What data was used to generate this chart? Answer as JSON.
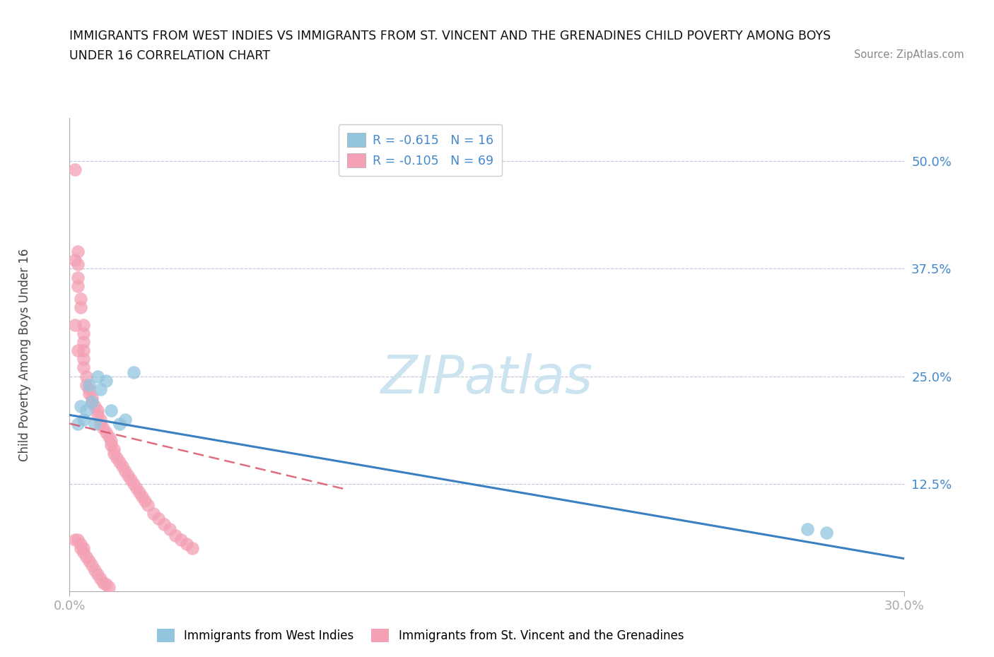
{
  "title_line1": "IMMIGRANTS FROM WEST INDIES VS IMMIGRANTS FROM ST. VINCENT AND THE GRENADINES CHILD POVERTY AMONG BOYS",
  "title_line2": "UNDER 16 CORRELATION CHART",
  "source": "Source: ZipAtlas.com",
  "ylabel": "Child Poverty Among Boys Under 16",
  "xlim": [
    0.0,
    0.3
  ],
  "ylim": [
    0.0,
    0.55
  ],
  "yticks": [
    0.0,
    0.125,
    0.25,
    0.375,
    0.5
  ],
  "ytick_labels": [
    "",
    "12.5%",
    "25.0%",
    "37.5%",
    "50.0%"
  ],
  "xtick_labels": [
    "0.0%",
    "30.0%"
  ],
  "legend_R1": "-0.615",
  "legend_N1": "16",
  "legend_R2": "-0.105",
  "legend_N2": "69",
  "blue_color": "#92c5de",
  "pink_color": "#f4a0b5",
  "blue_line_color": "#3a7fc1",
  "pink_line_color": "#d9536a",
  "watermark": "ZIPatlas",
  "watermark_color": "#cce4f0",
  "blue_x": [
    0.003,
    0.004,
    0.005,
    0.006,
    0.007,
    0.008,
    0.009,
    0.01,
    0.011,
    0.013,
    0.015,
    0.018,
    0.02,
    0.023,
    0.265,
    0.272
  ],
  "blue_y": [
    0.195,
    0.215,
    0.2,
    0.21,
    0.24,
    0.22,
    0.195,
    0.25,
    0.235,
    0.245,
    0.21,
    0.195,
    0.2,
    0.255,
    0.072,
    0.068
  ],
  "pink_x": [
    0.002,
    0.002,
    0.002,
    0.003,
    0.003,
    0.003,
    0.003,
    0.003,
    0.004,
    0.004,
    0.004,
    0.004,
    0.005,
    0.005,
    0.005,
    0.005,
    0.005,
    0.005,
    0.005,
    0.005,
    0.006,
    0.006,
    0.006,
    0.007,
    0.007,
    0.007,
    0.008,
    0.008,
    0.008,
    0.009,
    0.009,
    0.01,
    0.01,
    0.01,
    0.011,
    0.011,
    0.011,
    0.012,
    0.012,
    0.013,
    0.013,
    0.014,
    0.014,
    0.015,
    0.015,
    0.016,
    0.016,
    0.017,
    0.018,
    0.019,
    0.02,
    0.021,
    0.022,
    0.023,
    0.024,
    0.025,
    0.026,
    0.027,
    0.028,
    0.03,
    0.032,
    0.034,
    0.036,
    0.038,
    0.04,
    0.042,
    0.044,
    0.002,
    0.003
  ],
  "pink_y": [
    0.49,
    0.385,
    0.06,
    0.395,
    0.38,
    0.365,
    0.355,
    0.06,
    0.34,
    0.33,
    0.055,
    0.05,
    0.31,
    0.3,
    0.29,
    0.28,
    0.27,
    0.26,
    0.05,
    0.045,
    0.25,
    0.24,
    0.04,
    0.235,
    0.23,
    0.035,
    0.225,
    0.22,
    0.03,
    0.215,
    0.025,
    0.21,
    0.205,
    0.02,
    0.2,
    0.195,
    0.015,
    0.19,
    0.01,
    0.185,
    0.008,
    0.18,
    0.005,
    0.175,
    0.17,
    0.165,
    0.16,
    0.155,
    0.15,
    0.145,
    0.14,
    0.135,
    0.13,
    0.125,
    0.12,
    0.115,
    0.11,
    0.105,
    0.1,
    0.09,
    0.085,
    0.078,
    0.072,
    0.065,
    0.06,
    0.055,
    0.05,
    0.31,
    0.28
  ],
  "blue_line_x0": 0.0,
  "blue_line_y0": 0.205,
  "blue_line_x1": 0.3,
  "blue_line_y1": 0.038,
  "pink_line_x0": 0.0,
  "pink_line_y0": 0.195,
  "pink_line_x1": 0.1,
  "pink_line_y1": 0.118
}
